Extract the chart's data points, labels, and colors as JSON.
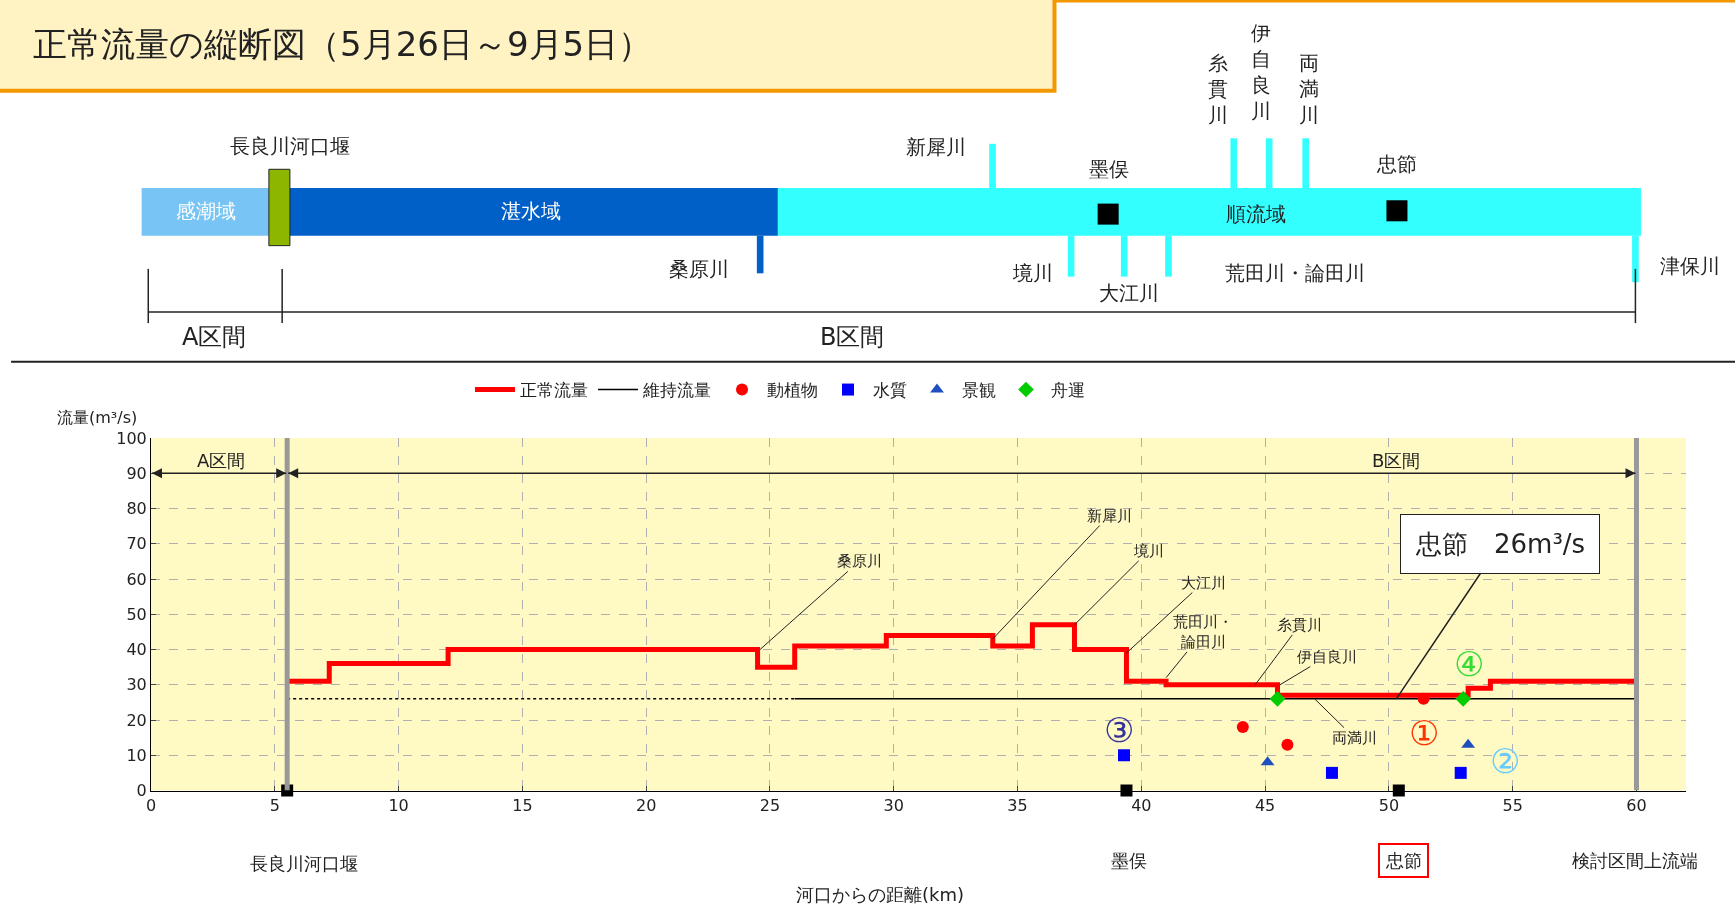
{
  "chart_data": {
    "type": "step",
    "title": "正常流量の縦断図（5月26日～9月5日）",
    "xlabel": "河口からの距離(km)",
    "ylabel": "流量(m³/s)",
    "xlim": [
      0,
      62
    ],
    "xticks": [
      0,
      5,
      10,
      15,
      20,
      25,
      30,
      35,
      40,
      45,
      50,
      55,
      60
    ],
    "ylim": [
      0,
      100
    ],
    "yticks": [
      0,
      10,
      20,
      30,
      40,
      50,
      60,
      70,
      80,
      90,
      100
    ],
    "grid": true,
    "legend": "top",
    "series": [
      {
        "name": "正常流量",
        "color": "#ff0000",
        "marker": "none",
        "line_style": "solid",
        "x": [
          5.5,
          7.2,
          12.0,
          24.5,
          26.0,
          29.7,
          34.0,
          35.6,
          37.3,
          39.4,
          41.0,
          45.5,
          53.2,
          54.1,
          60
        ],
        "values": [
          31,
          36,
          40,
          35,
          41,
          44,
          41,
          47,
          40,
          31,
          30,
          27,
          29,
          31,
          31
        ]
      },
      {
        "name": "維持流量",
        "type": "line",
        "color": "#000000",
        "marker": "none",
        "line_style": "solid",
        "x": [
          26,
          60
        ],
        "values": [
          26,
          26
        ]
      },
      {
        "type": "line",
        "color": "#000000",
        "marker": "none",
        "line_style": "dotted",
        "x": [
          5.5,
          26
        ],
        "values": [
          26,
          26
        ]
      },
      {
        "name": "動植物",
        "type": "scatter",
        "color": "#ff0000",
        "marker": "circle",
        "x": [
          44.1,
          45.9,
          51.4
        ],
        "values": [
          18,
          13,
          26
        ]
      },
      {
        "name": "水質",
        "type": "scatter",
        "color": "#0000ff",
        "marker": "square",
        "x": [
          39.3,
          47.7,
          52.9
        ],
        "values": [
          10,
          5,
          5
        ]
      },
      {
        "name": "景観",
        "type": "scatter",
        "color": "#1f4fbf",
        "marker": "triangle",
        "x": [
          45.1,
          53.2
        ],
        "values": [
          8,
          13
        ]
      },
      {
        "name": "舟運",
        "type": "scatter",
        "color": "#00cc00",
        "marker": "diamond",
        "x": [
          45.5,
          53.0
        ],
        "values": [
          26,
          26
        ]
      },
      {
        "type": "scatter",
        "color": "#000000",
        "marker": "square",
        "x": [
          5.5,
          39.4,
          50.4
        ],
        "values": [
          0,
          0,
          0
        ]
      }
    ],
    "ref_lines": [
      {
        "axis": "x",
        "value": 5.5,
        "color": "#999999"
      },
      {
        "axis": "x",
        "value": 60,
        "color": "#999999"
      }
    ],
    "annotations": [
      {
        "text": "桑原川",
        "x": 24.6,
        "y": 40
      },
      {
        "text": "新犀川",
        "x": 34.0,
        "y": 43
      },
      {
        "text": "境川",
        "x": 37.3,
        "y": 47
      },
      {
        "text": "大江川",
        "x": 39.4,
        "y": 39
      },
      {
        "text": "荒田川・論田川",
        "x": 41.0,
        "y": 32
      },
      {
        "text": "糸貫川",
        "x": 44.6,
        "y": 30
      },
      {
        "text": "伊自良川",
        "x": 45.6,
        "y": 30
      },
      {
        "text": "両満川",
        "x": 47.0,
        "y": 26
      },
      {
        "text": "忠節　26m³/s",
        "x": 50.3,
        "y": 26
      },
      "A区間",
      "B区間",
      "①",
      "②",
      "③",
      "④",
      "長良川河口堰",
      "墨俣",
      "忠節",
      "検討区間上流端",
      "長良川河口堰",
      "感潮域",
      "湛水域",
      "順流域",
      "新犀川",
      "墨俣",
      "糸貫川",
      "伊自良川",
      "両満川",
      "忠節",
      "桑原川",
      "境川",
      "大江川",
      "荒田川・論田川",
      "津保川",
      "A区間",
      "B区間"
    ]
  }
}
